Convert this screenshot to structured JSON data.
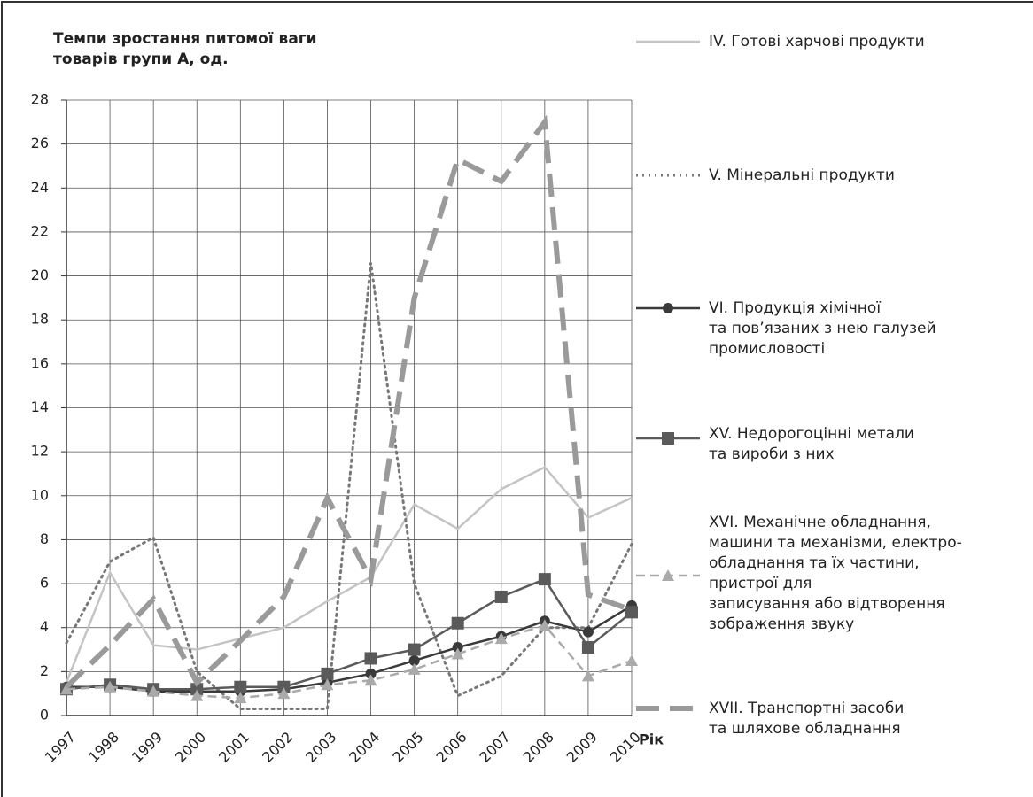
{
  "chart_data": {
    "type": "line",
    "title": "Темпи зростання питомої ваги\nтоварів групи А, од.",
    "x_label": "Рік",
    "categories": [
      "1997",
      "1998",
      "1999",
      "2000",
      "2001",
      "2002",
      "2003",
      "2004",
      "2005",
      "2006",
      "2007",
      "2008",
      "2009",
      "2010"
    ],
    "ylim": [
      0,
      28
    ],
    "yticks": [
      0,
      2,
      4,
      6,
      8,
      10,
      12,
      14,
      16,
      18,
      20,
      22,
      24,
      26,
      28
    ],
    "grid": true,
    "series": [
      {
        "name": "IV. Готові харчові продукти",
        "color": "#c4c4c4",
        "line_style": "solid",
        "marker": "none",
        "values": [
          1.5,
          6.5,
          3.2,
          3.0,
          3.5,
          4.0,
          5.2,
          6.3,
          9.6,
          8.5,
          10.3,
          11.3,
          9.0,
          9.9
        ]
      },
      {
        "name": "V. Мінеральні продукти",
        "color": "#777777",
        "line_style": "dotted",
        "marker": "none",
        "values": [
          3.3,
          7.0,
          8.1,
          2.0,
          0.3,
          0.3,
          0.3,
          20.6,
          6.0,
          0.9,
          1.8,
          4.0,
          4.0,
          7.8
        ]
      },
      {
        "name": "VI. Продукція хімічної\nта пов’язаних з нею галузей\nпромисловості",
        "color": "#3a3a3a",
        "line_style": "solid",
        "marker": "circle",
        "values": [
          1.3,
          1.3,
          1.1,
          1.1,
          1.1,
          1.2,
          1.5,
          1.9,
          2.5,
          3.1,
          3.6,
          4.3,
          3.8,
          5.0
        ]
      },
      {
        "name": "XV. Недорогоцінні метали\nта вироби з них",
        "color": "#5a5a5a",
        "line_style": "solid",
        "marker": "square",
        "values": [
          1.2,
          1.4,
          1.2,
          1.2,
          1.3,
          1.3,
          1.9,
          2.6,
          3.0,
          4.2,
          5.4,
          6.2,
          3.1,
          4.7
        ]
      },
      {
        "name": "XVI. Механічне обладнання,\nмашини та механізми, електро-\nобладнання та їх частини,\nпристрої для\nзаписування або відтворення\nзображення звуку",
        "color": "#aaaaaa",
        "line_style": "dashed",
        "marker": "triangle",
        "values": [
          1.2,
          1.3,
          1.1,
          0.9,
          0.8,
          1.0,
          1.4,
          1.6,
          2.1,
          2.8,
          3.5,
          4.1,
          1.8,
          2.5
        ]
      },
      {
        "name": "XVII. Транспортні засоби\nта шляхове обладнання",
        "color": "#9a9a9a",
        "line_style": "longdash",
        "marker": "none",
        "values": [
          1.3,
          3.2,
          5.3,
          1.5,
          3.4,
          5.4,
          9.9,
          6.2,
          19.0,
          25.3,
          24.3,
          27.0,
          5.5,
          4.8
        ]
      }
    ]
  }
}
